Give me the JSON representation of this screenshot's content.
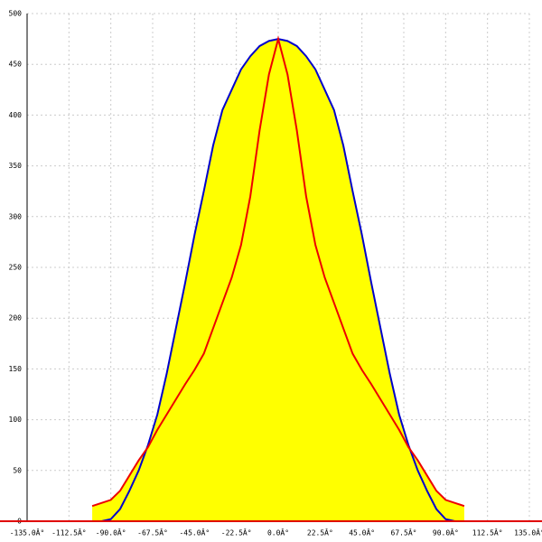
{
  "chart_data": {
    "type": "area-line",
    "x": [
      -100,
      -95,
      -90,
      -85,
      -80,
      -75,
      -70,
      -65,
      -60,
      -55,
      -50,
      -45,
      -40,
      -35,
      -30,
      -25,
      -20,
      -15,
      -10,
      -5,
      0,
      5,
      10,
      15,
      20,
      25,
      30,
      35,
      40,
      45,
      50,
      55,
      60,
      65,
      70,
      75,
      80,
      85,
      90,
      95,
      100
    ],
    "series": [
      {
        "color": "#0000cc",
        "fill": "#ffff00",
        "values": [
          null,
          0,
          2,
          12,
          30,
          50,
          75,
          105,
          145,
          190,
          235,
          282,
          325,
          370,
          405,
          425,
          445,
          458,
          468,
          473,
          475,
          473,
          468,
          458,
          445,
          425,
          405,
          370,
          325,
          282,
          235,
          190,
          145,
          105,
          75,
          50,
          30,
          12,
          2,
          0,
          null
        ]
      },
      {
        "color": "#ee0000",
        "fill": "#ffff00",
        "values": [
          15,
          18,
          21,
          30,
          45,
          60,
          73,
          90,
          105,
          120,
          135,
          149,
          165,
          190,
          215,
          240,
          272,
          320,
          385,
          440,
          475,
          440,
          385,
          320,
          272,
          240,
          215,
          190,
          165,
          149,
          135,
          120,
          105,
          90,
          73,
          60,
          45,
          30,
          21,
          18,
          15
        ]
      }
    ],
    "xlim": [
      -135,
      135
    ],
    "ylim": [
      0,
      500
    ],
    "xticks": [
      {
        "value": -135,
        "label": "-135.0Â°"
      },
      {
        "value": -112.5,
        "label": "-112.5Â°"
      },
      {
        "value": -90,
        "label": "-90.0Â°"
      },
      {
        "value": -67.5,
        "label": "-67.5Â°"
      },
      {
        "value": -45,
        "label": "-45.0Â°"
      },
      {
        "value": -22.5,
        "label": "-22.5Â°"
      },
      {
        "value": 0,
        "label": "0.0Â°"
      },
      {
        "value": 22.5,
        "label": "22.5Â°"
      },
      {
        "value": 45,
        "label": "45.0Â°"
      },
      {
        "value": 67.5,
        "label": "67.5Â°"
      },
      {
        "value": 90,
        "label": "90.0Â°"
      },
      {
        "value": 112.5,
        "label": "112.5Â°"
      },
      {
        "value": 135,
        "label": "135.0Â°"
      }
    ],
    "yticks": [
      0,
      50,
      100,
      150,
      200,
      250,
      300,
      350,
      400,
      450,
      500
    ],
    "grid": true
  }
}
